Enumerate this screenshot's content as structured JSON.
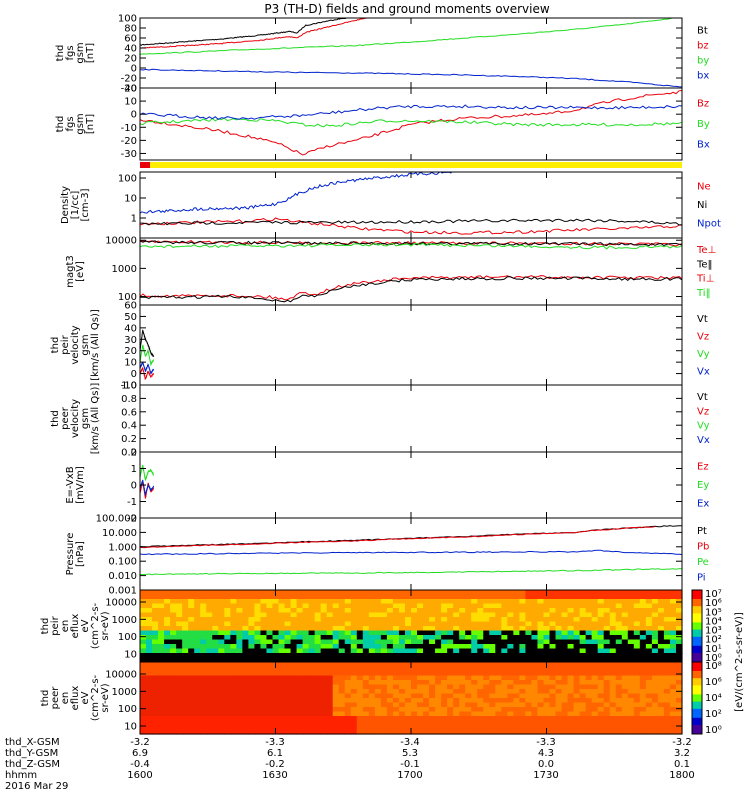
{
  "title": "P3 (TH-D) fields and ground moments overview",
  "colors": {
    "black": "#000000",
    "red": "#e8000b",
    "green": "#22dd22",
    "blue": "#0022cc",
    "yellow": "#ffee00"
  },
  "chart_data": [
    {
      "id": "fgs_gsm",
      "type": "line",
      "ylabel": [
        "thd",
        "fgs",
        "gsm",
        "[nT]"
      ],
      "ylim": [
        -40,
        100
      ],
      "yticks": [
        "100",
        "80",
        "60",
        "40",
        "20",
        "0",
        "-20",
        "-40"
      ],
      "legend": [
        {
          "name": "Bt",
          "color": "#000000"
        },
        {
          "name": "bz",
          "color": "#e8000b"
        },
        {
          "name": "by",
          "color": "#22dd22"
        },
        {
          "name": "bx",
          "color": "#0022cc"
        }
      ],
      "series": [
        {
          "name": "Bt",
          "color": "#000000",
          "x": [
            1600,
            1615,
            1630,
            1645,
            1655,
            1658,
            1661,
            1670,
            1677
          ],
          "y": [
            46,
            52,
            58,
            66,
            73,
            70,
            85,
            95,
            101
          ]
        },
        {
          "name": "bz",
          "color": "#e8000b",
          "x": [
            1600,
            1615,
            1630,
            1645,
            1655,
            1658,
            1661,
            1670,
            1677,
            1684
          ],
          "y": [
            40,
            44,
            49,
            56,
            63,
            60,
            71,
            83,
            92,
            101
          ]
        },
        {
          "name": "by",
          "color": "#22dd22",
          "x": [
            1600,
            1620,
            1640,
            1660,
            1680,
            1700,
            1720,
            1740,
            1760,
            1780,
            1800
          ],
          "y": [
            28,
            32,
            37,
            41,
            45,
            52,
            60,
            68,
            77,
            88,
            102
          ]
        },
        {
          "name": "bx",
          "color": "#0022cc",
          "x": [
            1600,
            1620,
            1640,
            1660,
            1680,
            1700,
            1720,
            1740,
            1760,
            1780,
            1800
          ],
          "y": [
            -3,
            -5,
            -7,
            -9,
            -10,
            -12,
            -14,
            -17,
            -21,
            -28,
            -38
          ]
        }
      ]
    },
    {
      "id": "fgs_gsm2",
      "type": "line",
      "ylabel": [
        "thd",
        "fgs",
        "gsm",
        "[nT]"
      ],
      "ylim": [
        -35,
        20
      ],
      "yticks": [
        "20",
        "10",
        "0",
        "-10",
        "-20",
        "-30"
      ],
      "legend": [
        {
          "name": "Bz",
          "color": "#e8000b"
        },
        {
          "name": "By",
          "color": "#22dd22"
        },
        {
          "name": "Bx",
          "color": "#0022cc"
        }
      ],
      "series": [
        {
          "name": "Bz",
          "color": "#e8000b",
          "x": [
            1600,
            1610,
            1620,
            1630,
            1640,
            1650,
            1655,
            1660,
            1670,
            1680,
            1690,
            1700,
            1710,
            1720,
            1730,
            1740,
            1750,
            1760,
            1770,
            1780,
            1790,
            1800
          ],
          "y": [
            -4,
            -7,
            -10,
            -13,
            -17,
            -22,
            -26,
            -31,
            -24,
            -20,
            -14,
            -8,
            -5,
            -3,
            -2,
            -1,
            0,
            3,
            8,
            12,
            15,
            17
          ]
        },
        {
          "name": "By",
          "color": "#22dd22",
          "x": [
            1600,
            1610,
            1620,
            1630,
            1640,
            1650,
            1660,
            1670,
            1680,
            1690,
            1700,
            1720,
            1740,
            1760,
            1780,
            1800
          ],
          "y": [
            -7,
            -6,
            -5,
            -4,
            -4,
            -5,
            -8,
            -9,
            -7,
            -5,
            -5,
            -6,
            -8,
            -8,
            -8,
            -7
          ]
        },
        {
          "name": "Bx",
          "color": "#0022cc",
          "x": [
            1600,
            1610,
            1620,
            1630,
            1640,
            1650,
            1660,
            1670,
            1680,
            1690,
            1700,
            1720,
            1740,
            1760,
            1780,
            1800
          ],
          "y": [
            0,
            -1,
            -2,
            -3,
            -3,
            -2,
            -1,
            1,
            3,
            5,
            6,
            6,
            5,
            5,
            5,
            6
          ]
        }
      ]
    },
    {
      "id": "density",
      "type": "line",
      "ylabel": [
        "Density",
        "[1/cc]",
        "[cm-3]"
      ],
      "scale": "log",
      "ylim": [
        0.1,
        200
      ],
      "yticks": [
        "100",
        "10",
        "1"
      ],
      "legend": [
        {
          "name": "Ne",
          "color": "#e8000b"
        },
        {
          "name": "Ni",
          "color": "#000000"
        },
        {
          "name": "Npot",
          "color": "#0022cc"
        }
      ],
      "series": [
        {
          "name": "Ne",
          "color": "#e8000b",
          "x": [
            1600,
            1620,
            1640,
            1650,
            1660,
            1670,
            1680,
            1700,
            1720,
            1740,
            1760,
            1780,
            1800
          ],
          "y": [
            0.5,
            0.6,
            0.7,
            0.9,
            0.6,
            0.45,
            0.3,
            0.2,
            0.18,
            0.2,
            0.25,
            0.3,
            0.4
          ]
        },
        {
          "name": "Ni",
          "color": "#000000",
          "x": [
            1600,
            1620,
            1640,
            1660,
            1680,
            1700,
            1720,
            1740,
            1760,
            1780,
            1800
          ],
          "y": [
            0.5,
            0.55,
            0.6,
            0.6,
            0.6,
            0.65,
            0.7,
            0.75,
            0.8,
            0.7,
            0.5
          ]
        },
        {
          "name": "Npot",
          "color": "#0022cc",
          "x": [
            1600,
            1610,
            1620,
            1630,
            1640,
            1650,
            1655,
            1660,
            1665,
            1670,
            1680,
            1690,
            1700,
            1710,
            1716
          ],
          "y": [
            2,
            2.2,
            2.8,
            3,
            3.2,
            5,
            9,
            20,
            35,
            50,
            80,
            110,
            150,
            180,
            200
          ]
        }
      ]
    },
    {
      "id": "temperature",
      "type": "line",
      "ylabel": [
        "magt3",
        "[eV]"
      ],
      "scale": "log",
      "ylim": [
        50,
        12000
      ],
      "yticks": [
        "10000",
        "1000",
        "100"
      ],
      "legend": [
        {
          "name": "Te⊥",
          "color": "#e8000b"
        },
        {
          "name": "Te‖",
          "color": "#000000"
        },
        {
          "name": "Ti⊥",
          "color": "#e8000b"
        },
        {
          "name": "Ti‖",
          "color": "#22dd22"
        }
      ],
      "series": [
        {
          "name": "Te⊥",
          "color": "#e8000b",
          "x": [
            1600,
            1630,
            1660,
            1700,
            1740,
            1770,
            1800
          ],
          "y": [
            9000,
            8500,
            8000,
            8000,
            7800,
            7500,
            7000
          ]
        },
        {
          "name": "Te‖",
          "color": "#000000",
          "x": [
            1600,
            1630,
            1660,
            1700,
            1740,
            1770,
            1800
          ],
          "y": [
            8500,
            8200,
            7800,
            7700,
            7600,
            7300,
            6800
          ]
        },
        {
          "name": "Ti‖",
          "color": "#22dd22",
          "x": [
            1600,
            1630,
            1660,
            1700,
            1740,
            1770,
            1800
          ],
          "y": [
            6000,
            6200,
            6500,
            7000,
            6200,
            5500,
            6000
          ]
        },
        {
          "name": "Ti⊥",
          "color": "#e8000b",
          "x": [
            1600,
            1615,
            1630,
            1645,
            1650,
            1655,
            1660,
            1665,
            1670,
            1680,
            1700,
            1720,
            1740,
            1760,
            1780,
            1800
          ],
          "y": [
            110,
            105,
            110,
            100,
            90,
            80,
            140,
            120,
            180,
            300,
            450,
            480,
            500,
            480,
            470,
            460
          ]
        },
        {
          "name": "Te‖b",
          "color": "#000000",
          "x": [
            1600,
            1615,
            1630,
            1645,
            1650,
            1655,
            1660,
            1665,
            1670,
            1680,
            1700,
            1720,
            1740,
            1760,
            1780,
            1800
          ],
          "y": [
            90,
            95,
            100,
            85,
            75,
            65,
            110,
            100,
            150,
            250,
            400,
            430,
            450,
            440,
            420,
            420
          ]
        }
      ]
    },
    {
      "id": "peir_velocity",
      "type": "line",
      "ylabel": [
        "thd",
        "peir",
        "velocity",
        "gsm",
        "[km/s (All Qs)]"
      ],
      "ylim": [
        -10,
        60
      ],
      "yticks": [
        "60",
        "50",
        "40",
        "30",
        "20",
        "10",
        "0",
        "-10"
      ],
      "legend": [
        {
          "name": "Vt",
          "color": "#000000"
        },
        {
          "name": "Vz",
          "color": "#e8000b"
        },
        {
          "name": "Vy",
          "color": "#22dd22"
        },
        {
          "name": "Vx",
          "color": "#0022cc"
        }
      ],
      "series": [
        {
          "name": "Vt",
          "color": "#000000",
          "x": [
            1600,
            1601,
            1602,
            1603,
            1604,
            1605
          ],
          "y": [
            20,
            38,
            30,
            25,
            18,
            15
          ]
        },
        {
          "name": "Vz",
          "color": "#e8000b",
          "x": [
            1600,
            1601,
            1602,
            1603,
            1604,
            1605
          ],
          "y": [
            0,
            5,
            -5,
            2,
            -3,
            0
          ]
        },
        {
          "name": "Vy",
          "color": "#22dd22",
          "x": [
            1600,
            1601,
            1602,
            1603,
            1604,
            1605
          ],
          "y": [
            10,
            25,
            15,
            20,
            8,
            12
          ]
        },
        {
          "name": "Vx",
          "color": "#0022cc",
          "x": [
            1600,
            1601,
            1602,
            1603,
            1604,
            1605
          ],
          "y": [
            5,
            10,
            2,
            8,
            0,
            4
          ]
        }
      ]
    },
    {
      "id": "peer_velocity",
      "type": "line",
      "ylabel": [
        "thd",
        "peer",
        "velocity",
        "gsm",
        "[km/s (All Qs)]"
      ],
      "ylim": [
        0,
        1
      ],
      "yticks": [
        "1.0",
        "0.8",
        "0.6",
        "0.4",
        "0.2",
        "0.0"
      ],
      "legend": [
        {
          "name": "Vt",
          "color": "#000000"
        },
        {
          "name": "Vz",
          "color": "#e8000b"
        },
        {
          "name": "Vy",
          "color": "#22dd22"
        },
        {
          "name": "Vx",
          "color": "#0022cc"
        }
      ],
      "series": []
    },
    {
      "id": "efield",
      "type": "line",
      "ylabel": [
        "E=-VxB",
        "[mV/m]"
      ],
      "ylim": [
        -2,
        2
      ],
      "yticks": [
        "2",
        "1",
        "0",
        "-1",
        "-2"
      ],
      "legend": [
        {
          "name": "Ez",
          "color": "#e8000b"
        },
        {
          "name": "Ey",
          "color": "#22dd22"
        },
        {
          "name": "Ex",
          "color": "#0022cc"
        }
      ],
      "series": [
        {
          "name": "Ez",
          "color": "#e8000b",
          "x": [
            1600,
            1601,
            1602,
            1603,
            1604,
            1605
          ],
          "y": [
            -0.5,
            0.2,
            -0.8,
            0.1,
            -0.4,
            -0.2
          ]
        },
        {
          "name": "Ey",
          "color": "#22dd22",
          "x": [
            1600,
            1601,
            1602,
            1603,
            1604,
            1605
          ],
          "y": [
            0.5,
            1.2,
            0.3,
            0.8,
            0.9,
            0.6
          ]
        },
        {
          "name": "Ex",
          "color": "#0022cc",
          "x": [
            1600,
            1601,
            1602,
            1603,
            1604,
            1605
          ],
          "y": [
            -0.2,
            0.3,
            -0.6,
            0.0,
            -0.3,
            -0.1
          ]
        }
      ]
    },
    {
      "id": "pressure",
      "type": "line",
      "ylabel": [
        "Pressure",
        "[nPa]"
      ],
      "scale": "log",
      "ylim": [
        0.001,
        100
      ],
      "yticks": [
        "100.000",
        "10.000",
        "1.000",
        "0.100",
        "0.010",
        "0.001"
      ],
      "legend": [
        {
          "name": "Pt",
          "color": "#000000"
        },
        {
          "name": "Pb",
          "color": "#e8000b"
        },
        {
          "name": "Pe",
          "color": "#22dd22"
        },
        {
          "name": "Pi",
          "color": "#0022cc"
        }
      ],
      "series": [
        {
          "name": "Pt",
          "color": "#000000",
          "x": [
            1600,
            1640,
            1680,
            1720,
            1760,
            1800
          ],
          "y": [
            1.0,
            1.6,
            2.8,
            5.0,
            10,
            30
          ]
        },
        {
          "name": "Pb",
          "color": "#e8000b",
          "x": [
            1600,
            1640,
            1680,
            1720,
            1760,
            1790
          ],
          "y": [
            0.9,
            1.5,
            2.6,
            4.8,
            9.5,
            25
          ]
        },
        {
          "name": "Pe",
          "color": "#22dd22",
          "x": [
            1600,
            1640,
            1680,
            1720,
            1760,
            1800
          ],
          "y": [
            0.012,
            0.014,
            0.015,
            0.018,
            0.022,
            0.03
          ]
        },
        {
          "name": "Pi",
          "color": "#0022cc",
          "x": [
            1600,
            1640,
            1680,
            1720,
            1760,
            1770,
            1780,
            1800
          ],
          "y": [
            0.3,
            0.35,
            0.4,
            0.42,
            0.45,
            0.55,
            0.4,
            0.3
          ]
        }
      ]
    },
    {
      "id": "peir_spectrogram",
      "type": "heatmap",
      "ylabel": [
        "thd",
        "peir",
        "en",
        "eflux",
        "eV",
        "(cm^2-s-",
        "sr-eV)"
      ],
      "yticks": [
        "10000",
        "1000",
        "100",
        "10"
      ]
    },
    {
      "id": "peer_spectrogram",
      "type": "heatmap",
      "ylabel": [
        "thd",
        "peer",
        "en",
        "eflux",
        "eV",
        "(cm^2-s-",
        "sr-eV)"
      ],
      "yticks": [
        "10000",
        "1000",
        "100",
        "10"
      ]
    }
  ],
  "colorbar": {
    "label": "[eV/(cm^2-s-sr-eV)]",
    "upper_ticks": [
      "10⁷",
      "10⁶",
      "10⁵",
      "10⁴",
      "10³",
      "10²",
      "10¹",
      "10⁰"
    ],
    "lower_ticks": [
      "10⁸",
      "10⁶",
      "10⁴",
      "10²",
      "10⁰"
    ],
    "overlap_text": "[eV/(cm²-s-sr-eV)] (All Qs)"
  },
  "footer": {
    "rows": [
      {
        "label": "thd_X-GSM",
        "values": [
          "-3.2",
          "-3.3",
          "-3.4",
          "-3.3",
          "-3.2"
        ]
      },
      {
        "label": "thd_Y-GSM",
        "values": [
          "6.9",
          "6.1",
          "5.3",
          "4.3",
          "3.2"
        ]
      },
      {
        "label": "thd_Z-GSM",
        "values": [
          "-0.4",
          "-0.2",
          "-0.1",
          "0.0",
          "0.1"
        ]
      },
      {
        "label": "hhmm",
        "values": [
          "1600",
          "1630",
          "1700",
          "1730",
          "1800"
        ]
      }
    ],
    "date": "2016 Mar 29"
  }
}
